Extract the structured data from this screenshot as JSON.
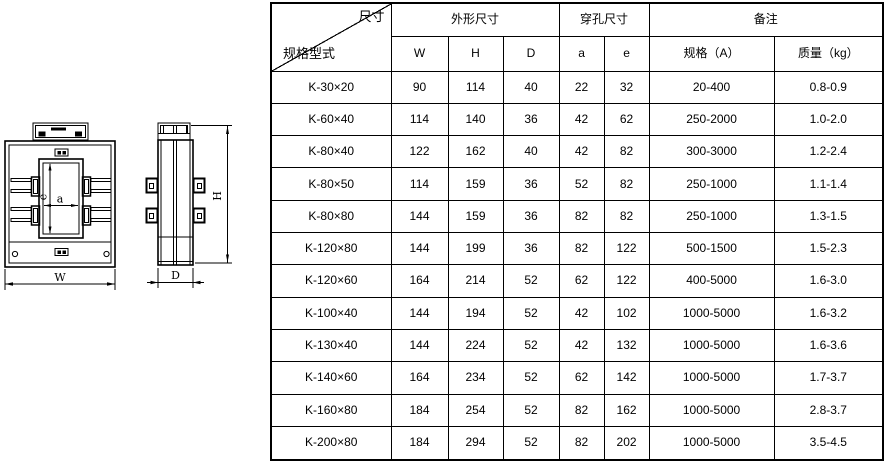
{
  "drawing": {
    "front_view": {
      "width_label": "W",
      "hole_width_label": "a",
      "hole_height_label": "e"
    },
    "side_view": {
      "height_label": "H",
      "depth_label": "D"
    }
  },
  "table": {
    "corner_top_label": "尺寸",
    "corner_bottom_label": "规格型式",
    "group_headers": [
      {
        "label": "外形尺寸",
        "colspan": 3
      },
      {
        "label": "穿孔尺寸",
        "colspan": 2
      },
      {
        "label": "备注",
        "colspan": 2
      }
    ],
    "sub_headers": [
      "W",
      "H",
      "D",
      "a",
      "e",
      "规格（A）",
      "质量（kg）"
    ],
    "rows": [
      {
        "model": "K-30×20",
        "values": [
          "90",
          "114",
          "40",
          "22",
          "32",
          "20-400",
          "0.8-0.9"
        ]
      },
      {
        "model": "K-60×40",
        "values": [
          "114",
          "140",
          "36",
          "42",
          "62",
          "250-2000",
          "1.0-2.0"
        ]
      },
      {
        "model": "K-80×40",
        "values": [
          "122",
          "162",
          "40",
          "42",
          "82",
          "300-3000",
          "1.2-2.4"
        ]
      },
      {
        "model": "K-80×50",
        "values": [
          "114",
          "159",
          "36",
          "52",
          "82",
          "250-1000",
          "1.1-1.4"
        ]
      },
      {
        "model": "K-80×80",
        "values": [
          "144",
          "159",
          "36",
          "82",
          "82",
          "250-1000",
          "1.3-1.5"
        ]
      },
      {
        "model": "K-120×80",
        "values": [
          "144",
          "199",
          "36",
          "82",
          "122",
          "500-1500",
          "1.5-2.3"
        ]
      },
      {
        "model": "K-120×60",
        "values": [
          "164",
          "214",
          "52",
          "62",
          "122",
          "400-5000",
          "1.6-3.0"
        ]
      },
      {
        "model": "K-100×40",
        "values": [
          "144",
          "194",
          "52",
          "42",
          "102",
          "1000-5000",
          "1.6-3.2"
        ]
      },
      {
        "model": "K-130×40",
        "values": [
          "144",
          "224",
          "52",
          "42",
          "132",
          "1000-5000",
          "1.6-3.6"
        ]
      },
      {
        "model": "K-140×60",
        "values": [
          "164",
          "234",
          "52",
          "62",
          "142",
          "1000-5000",
          "1.7-3.7"
        ]
      },
      {
        "model": "K-160×80",
        "values": [
          "184",
          "254",
          "52",
          "82",
          "162",
          "1000-5000",
          "2.8-3.7"
        ]
      },
      {
        "model": "K-200×80",
        "values": [
          "184",
          "294",
          "52",
          "82",
          "202",
          "1000-5000",
          "3.5-4.5"
        ]
      }
    ]
  },
  "colors": {
    "line": "#000000",
    "background": "#ffffff"
  }
}
